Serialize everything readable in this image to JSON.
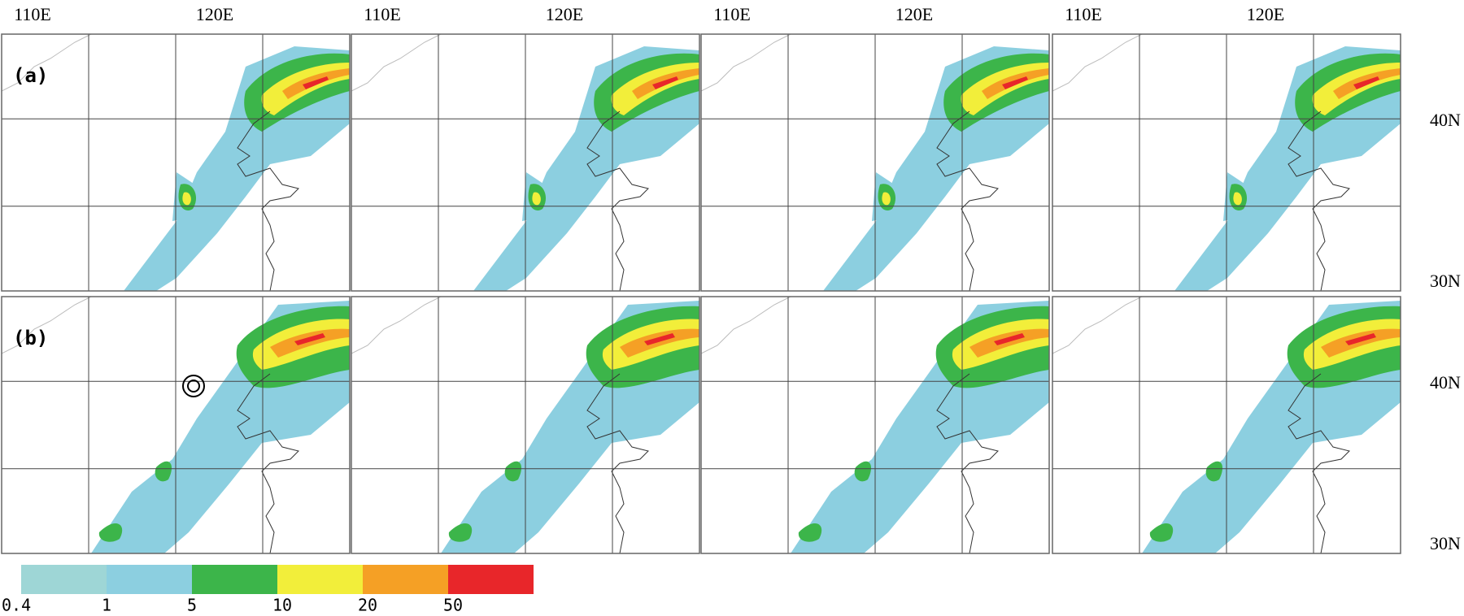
{
  "map_figure": {
    "lon_labels": [
      "110E",
      "120E"
    ],
    "lat_labels": [
      "40N",
      "30N"
    ],
    "rows": [
      {
        "label": "(a)"
      },
      {
        "label": "(b)"
      }
    ],
    "colorbar": {
      "levels": [
        0.4,
        1,
        5,
        10,
        20,
        50
      ],
      "colors": [
        "#9ed6d6",
        "#8ccfe0",
        "#3cb54a",
        "#f2ee3a",
        "#f5a025",
        "#e8262a"
      ]
    }
  }
}
